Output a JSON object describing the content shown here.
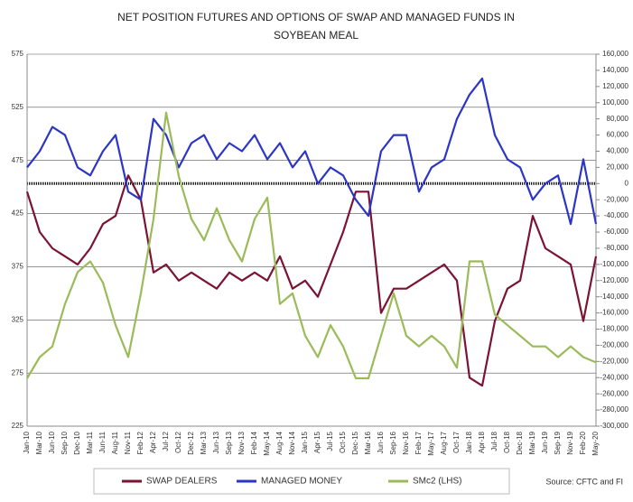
{
  "chart_data": {
    "type": "line",
    "title": "NET POSITION FUTURES AND OPTIONS OF SWAP AND MANAGED FUNDS IN",
    "subtitle": "SOYBEAN MEAL",
    "source": "Source: CFTC and FI",
    "categories": [
      "Jan-10",
      "Mar-10",
      "Jun-10",
      "Sep-10",
      "Dec-10",
      "Mar-11",
      "Jun-11",
      "Aug-11",
      "Nov-11",
      "Feb-12",
      "Apr-12",
      "Jul-12",
      "Oct-12",
      "Dec-12",
      "Mar-13",
      "Jun-13",
      "Sep-13",
      "Nov-13",
      "Feb-14",
      "May-14",
      "Aug-14",
      "Nov-14",
      "Jan-15",
      "Apr-15",
      "Jul-15",
      "Oct-15",
      "Dec-15",
      "Mar-16",
      "Jun-16",
      "Sep-16",
      "Nov-16",
      "Feb-17",
      "May-17",
      "Aug-17",
      "Oct-17",
      "Jan-18",
      "Apr-18",
      "Jul-18",
      "Oct-18",
      "Dec-18",
      "Mar-19",
      "Jun-19",
      "Sep-19",
      "Nov-19",
      "Feb-20",
      "May-20"
    ],
    "series": [
      {
        "name": "SWAP DEALERS",
        "color": "#7b1333",
        "axis": "y2",
        "values": [
          -10000,
          -60000,
          -80000,
          -90000,
          -100000,
          -80000,
          -50000,
          -40000,
          10000,
          -20000,
          -110000,
          -100000,
          -120000,
          -110000,
          -120000,
          -130000,
          -110000,
          -120000,
          -110000,
          -120000,
          -90000,
          -130000,
          -120000,
          -140000,
          -100000,
          -60000,
          -10000,
          -10000,
          -160000,
          -130000,
          -130000,
          -120000,
          -110000,
          -100000,
          -120000,
          -240000,
          -250000,
          -170000,
          -130000,
          -120000,
          -40000,
          -80000,
          -90000,
          -100000,
          -170000,
          -90000
        ]
      },
      {
        "name": "MANAGED MONEY",
        "color": "#2b35c6",
        "axis": "y2",
        "values": [
          20000,
          40000,
          70000,
          60000,
          20000,
          10000,
          40000,
          60000,
          -10000,
          -20000,
          80000,
          60000,
          20000,
          50000,
          60000,
          30000,
          50000,
          40000,
          60000,
          30000,
          50000,
          20000,
          40000,
          0,
          20000,
          10000,
          -20000,
          -40000,
          40000,
          60000,
          60000,
          -10000,
          20000,
          30000,
          80000,
          110000,
          130000,
          60000,
          30000,
          20000,
          -20000,
          0,
          10000,
          -50000,
          30000,
          -50000
        ]
      },
      {
        "name": "SMc2 (LHS)",
        "color": "#9bbb59",
        "values": [
          270,
          290,
          300,
          340,
          370,
          380,
          360,
          320,
          290,
          350,
          420,
          520,
          460,
          420,
          400,
          430,
          400,
          380,
          420,
          440,
          340,
          350,
          310,
          290,
          320,
          300,
          270,
          270,
          310,
          350,
          310,
          300,
          310,
          300,
          280,
          380,
          380,
          330,
          320,
          310,
          300,
          300,
          290,
          300,
          290,
          285
        ]
      }
    ],
    "ylim": [
      225,
      575
    ],
    "yticks": [
      225,
      275,
      325,
      375,
      425,
      475,
      525,
      575
    ],
    "y2lim": [
      -300000,
      160000
    ],
    "y2ticks": [
      {
        "value": -300000,
        "label": "-300,000"
      },
      {
        "value": -280000,
        "label": "-280,000"
      },
      {
        "value": -260000,
        "label": "-260,000"
      },
      {
        "value": -240000,
        "label": "-240,000"
      },
      {
        "value": -220000,
        "label": "-220,000"
      },
      {
        "value": -200000,
        "label": "-200,000"
      },
      {
        "value": -180000,
        "label": "-180,000"
      },
      {
        "value": -160000,
        "label": "-160,000"
      },
      {
        "value": -140000,
        "label": "-140,000"
      },
      {
        "value": -120000,
        "label": "-120,000"
      },
      {
        "value": -100000,
        "label": "-100,000"
      },
      {
        "value": -80000,
        "label": "-80,000"
      },
      {
        "value": -60000,
        "label": "-60,000"
      },
      {
        "value": -40000,
        "label": "-40,000"
      },
      {
        "value": -20000,
        "label": "-20,000"
      },
      0,
      {
        "value": 20000,
        "label": "20,000"
      },
      {
        "value": 40000,
        "label": "40,000"
      },
      {
        "value": 60000,
        "label": "60,000"
      },
      {
        "value": 80000,
        "label": "80,000"
      },
      {
        "value": 100000,
        "label": "100,000"
      },
      {
        "value": 120000,
        "label": "120,000"
      },
      {
        "value": 140000,
        "label": "140,000"
      },
      {
        "value": 160000,
        "label": "160,000"
      }
    ],
    "grid": true
  }
}
